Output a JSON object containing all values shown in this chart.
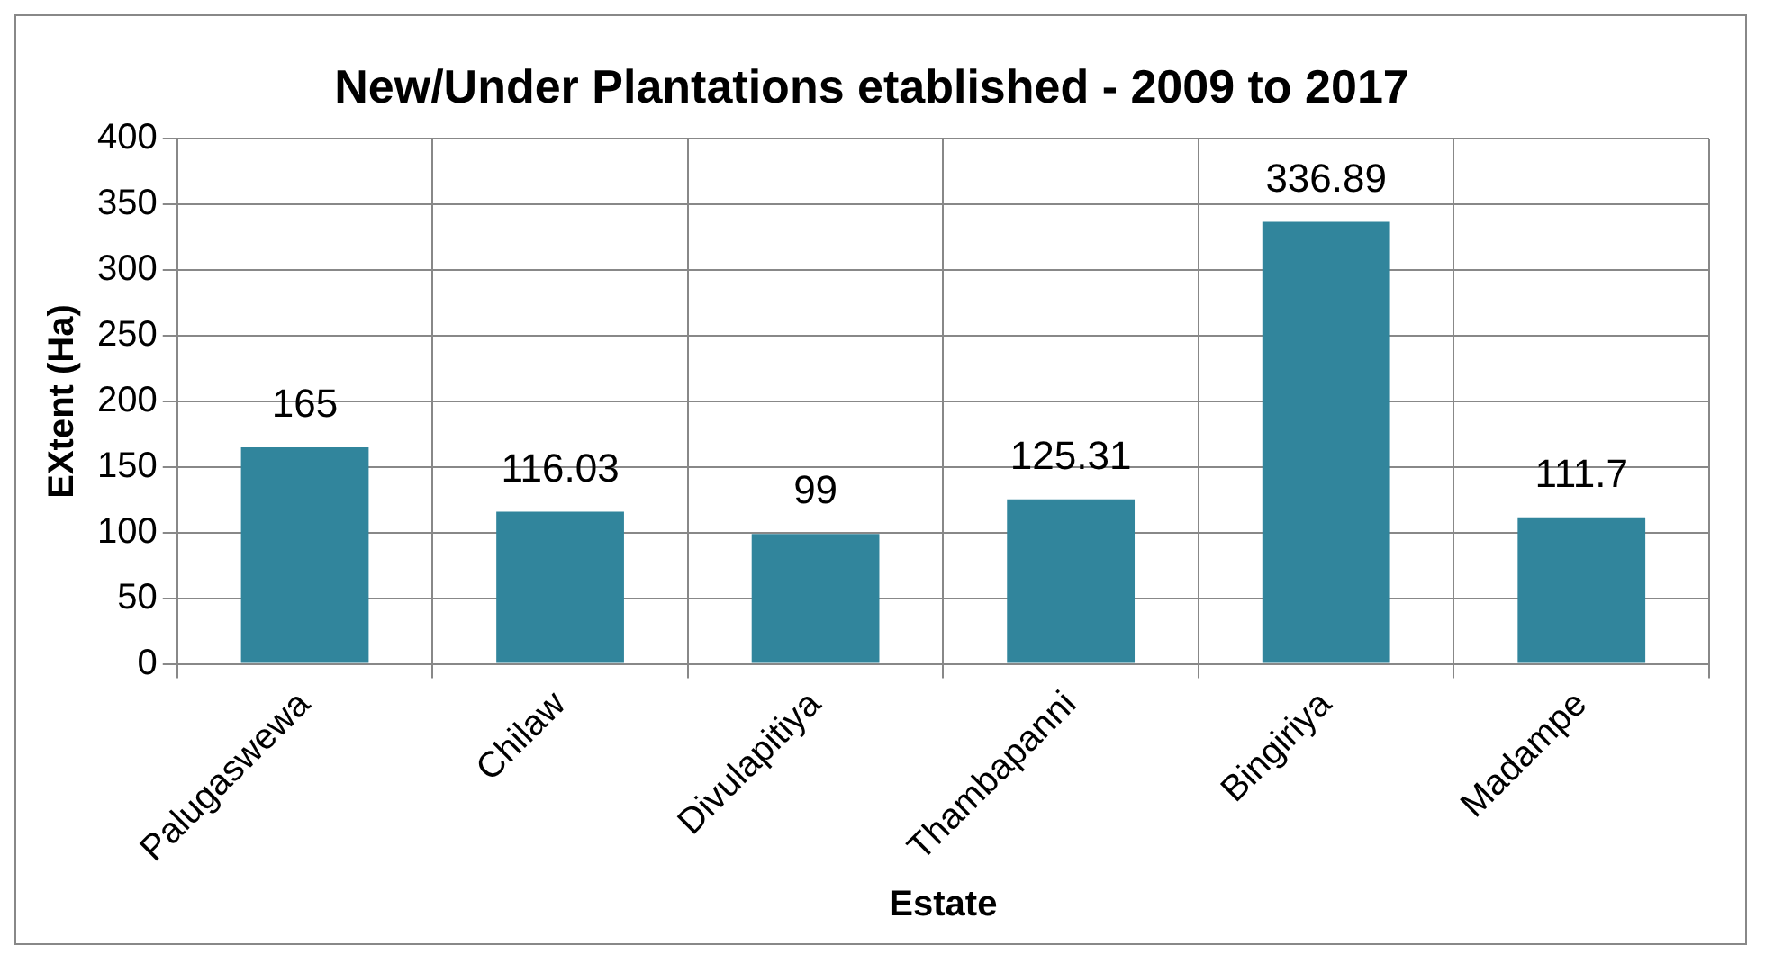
{
  "chart_data": {
    "type": "bar",
    "title": "New/Under Plantations etablished - 2009 to 2017",
    "xlabel": "Estate",
    "ylabel": "EXtent (Ha)",
    "categories": [
      "Palugaswewa",
      "Chilaw",
      "Divulapitiya",
      "Thambapanni",
      "Bingiriya",
      "Madampe"
    ],
    "values": [
      165,
      116.03,
      99,
      125.31,
      336.89,
      111.7
    ],
    "color": "#31859c",
    "ylim": [
      0,
      400
    ],
    "yticks": [
      0,
      50,
      100,
      150,
      200,
      250,
      300,
      350,
      400
    ],
    "grid": true,
    "legend": false,
    "data_labels": true
  }
}
